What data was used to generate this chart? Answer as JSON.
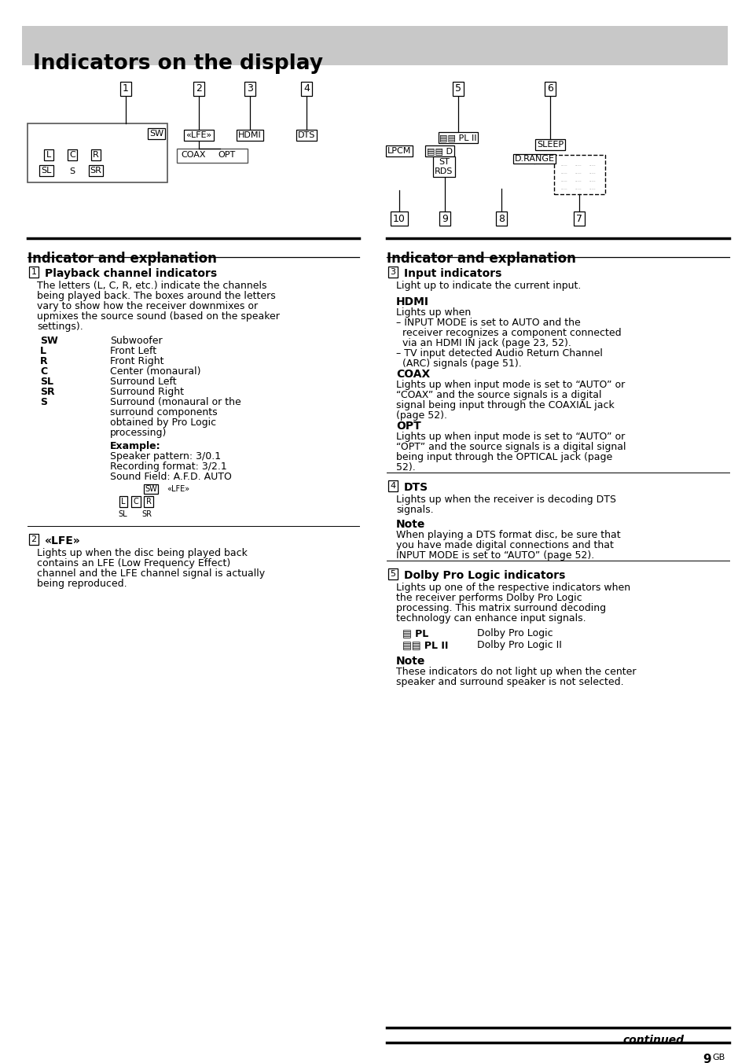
{
  "title": "Indicators on the display",
  "title_bg": "#c8c8c8",
  "page_bg": "#ffffff",
  "title_text": "Indicators on the display",
  "section_header": "Indicator and explanation",
  "left_items": [
    {
      "num": "1",
      "title": "Playback channel indicators",
      "body": "The letters (L, C, R, etc.) indicate the channels\nbeing played back. The boxes around the letters\nvary to show how the receiver downmixes or\nupmixes the source sound (based on the speaker\nsettings)."
    },
    {
      "table": [
        [
          "SW",
          "Subwoofer"
        ],
        [
          "L",
          "Front Left"
        ],
        [
          "R",
          "Front Right"
        ],
        [
          "C",
          "Center (monaural)"
        ],
        [
          "SL",
          "Surround Left"
        ],
        [
          "SR",
          "Surround Right"
        ],
        [
          "S",
          "Surround (monaural or the\nsurround components\nobtained by Pro Logic\nprocessing)"
        ]
      ]
    },
    {
      "example_label": "Example:",
      "example_lines": [
        "Speaker pattern: 3/0.1",
        "Recording format: 3/2.1",
        "Sound Field: A.F.D. AUTO"
      ]
    },
    {
      "num": "2",
      "title": "«LFE»",
      "body": "Lights up when the disc being played back\ncontains an LFE (Low Frequency Effect)\nchannel and the LFE channel signal is actually\nbeing reproduced."
    }
  ],
  "right_items": [
    {
      "num": "3",
      "title": "Input indicators",
      "body": "Light up to indicate the current input."
    },
    {
      "sub": "HDMI",
      "body": "Lights up when\n– INPUT MODE is set to AUTO and the\n   receiver recognizes a component connected\n   via an HDMI IN jack (page 23, 52).\n– TV input detected Audio Return Channel\n   (ARC) signals (page 51)."
    },
    {
      "sub": "COAX",
      "body": "Lights up when input mode is set to “AUTO” or\n“COAX” and the source signals is a digital\nsignal being input through the COAXIAL jack\n(page 52)."
    },
    {
      "sub": "OPT",
      "body": "Lights up when input mode is set to “AUTO” or\n“OPT” and the source signals is a digital signal\nbeing input through the OPTICAL jack (page\n52)."
    },
    {
      "divider": true
    },
    {
      "num": "4",
      "title": "DTS",
      "body": "Lights up when the receiver is decoding DTS\nsignals."
    },
    {
      "sub": "Note",
      "body": "When playing a DTS format disc, be sure that\nyou have made digital connections and that\nINPUT MODE is set to “AUTO” (page 52)."
    },
    {
      "divider": true
    },
    {
      "num": "5",
      "title": "Dolby Pro Logic indicators",
      "body": "Lights up one of the respective indicators when\nthe receiver performs Dolby Pro Logic\nprocessing. This matrix surround decoding\ntechnology can enhance input signals."
    },
    {
      "pl_table": [
        [
          "⊙ PL",
          "Dolby Pro Logic"
        ],
        [
          "⊙⊙ PL II",
          "Dolby Pro Logic II"
        ]
      ]
    },
    {
      "sub": "Note",
      "body": "These indicators do not light up when the center\nspeaker and surround speaker is not selected."
    }
  ]
}
